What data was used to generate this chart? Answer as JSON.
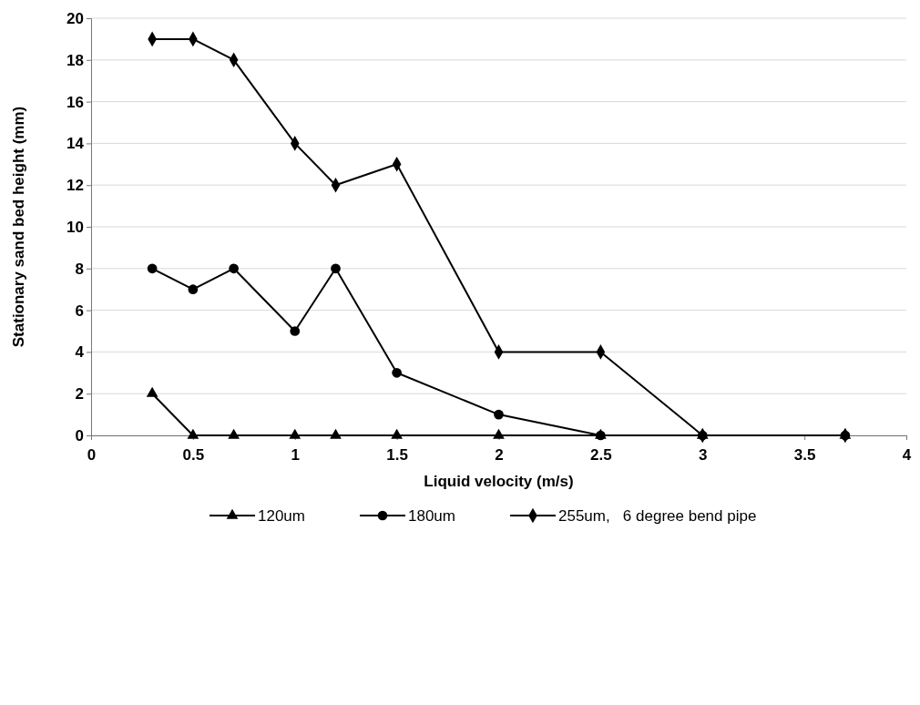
{
  "chart_data": {
    "type": "line",
    "xlabel": "Liquid velocity (m/s)",
    "ylabel": "Stationary sand bed height (mm)",
    "x": [
      0.3,
      0.5,
      0.7,
      1,
      1.2,
      1.5,
      2,
      2.5,
      3,
      3.7
    ],
    "series": [
      {
        "name": "120um",
        "color": "#000000",
        "marker": "triangle",
        "values": [
          2,
          0,
          0,
          0,
          0,
          0,
          0,
          0,
          0,
          0
        ]
      },
      {
        "name": "180um",
        "color": "#000000",
        "marker": "circle",
        "values": [
          8,
          7,
          8,
          5,
          8,
          3,
          1,
          0,
          0,
          0
        ]
      },
      {
        "name": "255um,   6 degree bend pipe",
        "color": "#000000",
        "marker": "diamond",
        "values": [
          19,
          19,
          18,
          14,
          12,
          13,
          4,
          4,
          0,
          0
        ]
      }
    ],
    "xlim": [
      0,
      4
    ],
    "xticks": [
      0,
      0.5,
      1,
      1.5,
      2,
      2.5,
      3,
      3.5,
      4
    ],
    "ylim": [
      0,
      20
    ],
    "yticks": [
      0,
      2,
      4,
      6,
      8,
      10,
      12,
      14,
      16,
      18,
      20
    ],
    "grid": "y",
    "legend": "bottom",
    "line_style": "solid"
  }
}
